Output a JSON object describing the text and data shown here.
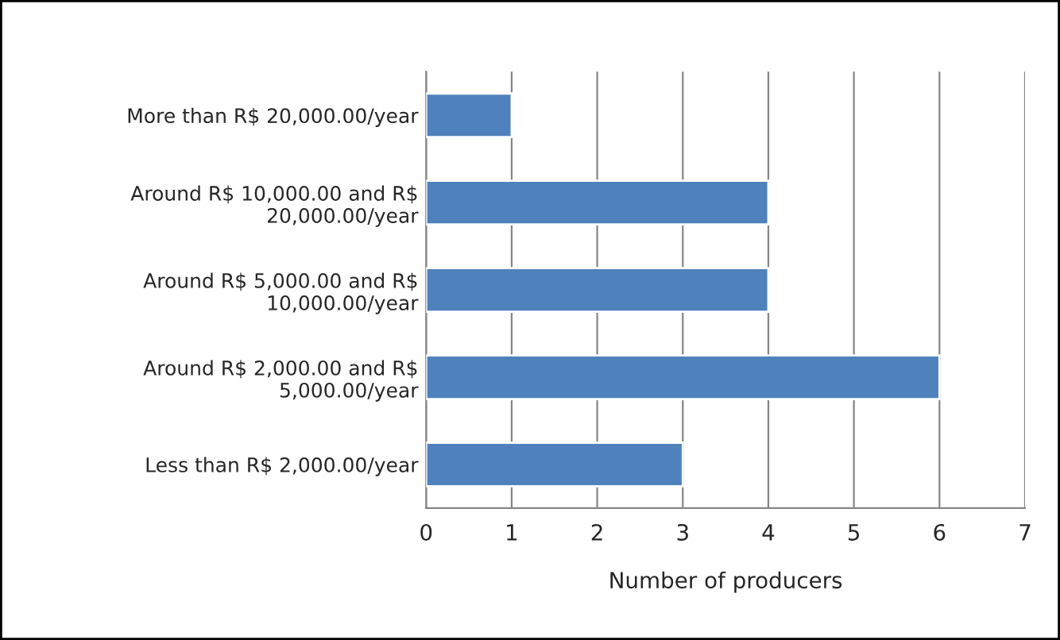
{
  "chart_data": {
    "type": "bar",
    "orientation": "horizontal",
    "categories": [
      "More than R$ 20,000.00/year",
      "Around R$ 10,000.00 and R$\n20,000.00/year",
      "Around R$ 5,000.00 and R$\n10,000.00/year",
      "Around R$ 2,000.00 and R$\n5,000.00/year",
      "Less than R$ 2,000.00/year"
    ],
    "values": [
      1,
      4,
      4,
      6,
      3
    ],
    "color": "#4f81bd",
    "xlabel": "Number of producers",
    "xlim": [
      0,
      7
    ],
    "xticks": [
      0,
      1,
      2,
      3,
      4,
      5,
      6,
      7
    ],
    "grid": "x"
  }
}
